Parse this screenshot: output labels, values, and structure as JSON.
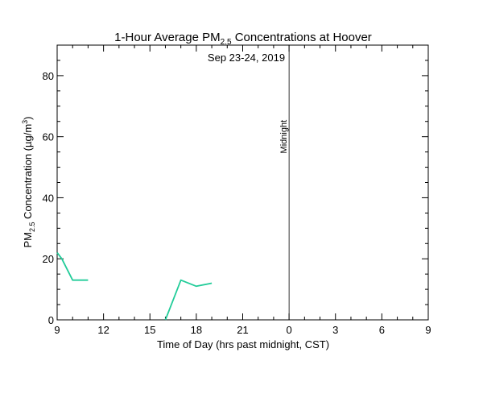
{
  "chart_data": {
    "type": "line",
    "title_main": "1-Hour Average PM",
    "title_sub": "2.5",
    "title_rest": " Concentrations at Hoover",
    "subtitle": "Sep 23-24, 2019",
    "xlabel": "Time of Day (hrs past midnight, CST)",
    "ylabel_main": "PM",
    "ylabel_sub": "2.5",
    "ylabel_rest": " Concentration (µg/m",
    "ylabel_sup": "3",
    "ylabel_end": ")",
    "x_range_hours": [
      9,
      33
    ],
    "ylim": [
      0,
      90
    ],
    "x_ticks": [
      {
        "hour": 9,
        "label": "9"
      },
      {
        "hour": 12,
        "label": "12"
      },
      {
        "hour": 15,
        "label": "15"
      },
      {
        "hour": 18,
        "label": "18"
      },
      {
        "hour": 21,
        "label": "21"
      },
      {
        "hour": 24,
        "label": "0"
      },
      {
        "hour": 27,
        "label": "3"
      },
      {
        "hour": 30,
        "label": "6"
      },
      {
        "hour": 33,
        "label": "9"
      }
    ],
    "y_ticks": [
      0,
      20,
      40,
      60,
      80
    ],
    "midnight_hour": 24,
    "midnight_label": "Midnight",
    "series": [
      {
        "color": "#22cc99",
        "segments": [
          [
            [
              9,
              22
            ],
            [
              9.3,
              20
            ],
            [
              10,
              13
            ],
            [
              11,
              13
            ]
          ],
          [
            [
              16,
              0
            ],
            [
              17,
              13
            ],
            [
              18,
              11
            ],
            [
              19,
              12
            ]
          ]
        ]
      }
    ]
  }
}
